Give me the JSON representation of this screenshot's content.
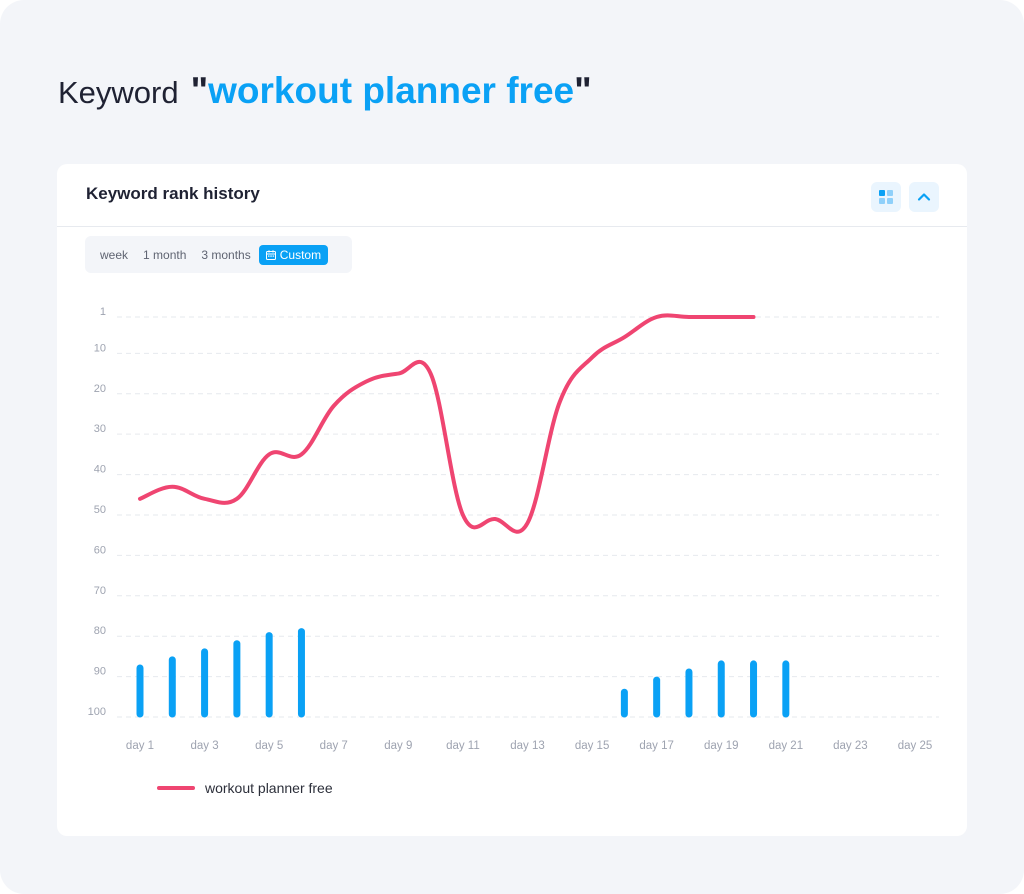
{
  "headline": {
    "prefix": "Keyword",
    "quote_open": "\"",
    "keyword": "workout planner free",
    "quote_close": "\""
  },
  "card": {
    "title": "Keyword rank history",
    "grid_icon": "grid-icon",
    "collapse_icon": "chevron-up-icon"
  },
  "periods": [
    {
      "label": "week",
      "active": false
    },
    {
      "label": "1 month",
      "active": false
    },
    {
      "label": "3 months",
      "active": false
    },
    {
      "label": "Custom",
      "active": true,
      "icon": "calendar-icon"
    }
  ],
  "colors": {
    "accent": "#0aa1f5",
    "line": "#ef4571",
    "bar": "#0aa1f5"
  },
  "chart_data": {
    "type": "line",
    "y_axis": {
      "reversed": true,
      "range": [
        1,
        100
      ],
      "ticks": [
        1,
        10,
        20,
        30,
        40,
        50,
        60,
        70,
        80,
        90,
        100
      ]
    },
    "x_tick_labels": [
      "day 1",
      "day 3",
      "day 5",
      "day 7",
      "day 9",
      "day 11",
      "day 13",
      "day 15",
      "day 17",
      "day 19",
      "day 21",
      "day 23",
      "day 25"
    ],
    "x_range": [
      1,
      25
    ],
    "grid": true,
    "legend_position": "bottom-left",
    "series": [
      {
        "name": "workout planner free",
        "type": "line",
        "points": [
          [
            1,
            46
          ],
          [
            2,
            43
          ],
          [
            3,
            46
          ],
          [
            4,
            46
          ],
          [
            5,
            35
          ],
          [
            6,
            35
          ],
          [
            7,
            23
          ],
          [
            8,
            17
          ],
          [
            9,
            15
          ],
          [
            10,
            15
          ],
          [
            11,
            50
          ],
          [
            12,
            51
          ],
          [
            13,
            52
          ],
          [
            14,
            22
          ],
          [
            15,
            11
          ],
          [
            16,
            6
          ],
          [
            17,
            1
          ],
          [
            18,
            1
          ],
          [
            19,
            1
          ],
          [
            20,
            1
          ]
        ]
      },
      {
        "type": "bar",
        "points": [
          [
            1,
            87
          ],
          [
            2,
            85
          ],
          [
            3,
            83
          ],
          [
            4,
            81
          ],
          [
            5,
            79
          ],
          [
            6,
            78
          ],
          [
            16,
            93
          ],
          [
            17,
            90
          ],
          [
            18,
            88
          ],
          [
            19,
            86
          ],
          [
            20,
            86
          ],
          [
            21,
            86
          ]
        ]
      }
    ]
  }
}
